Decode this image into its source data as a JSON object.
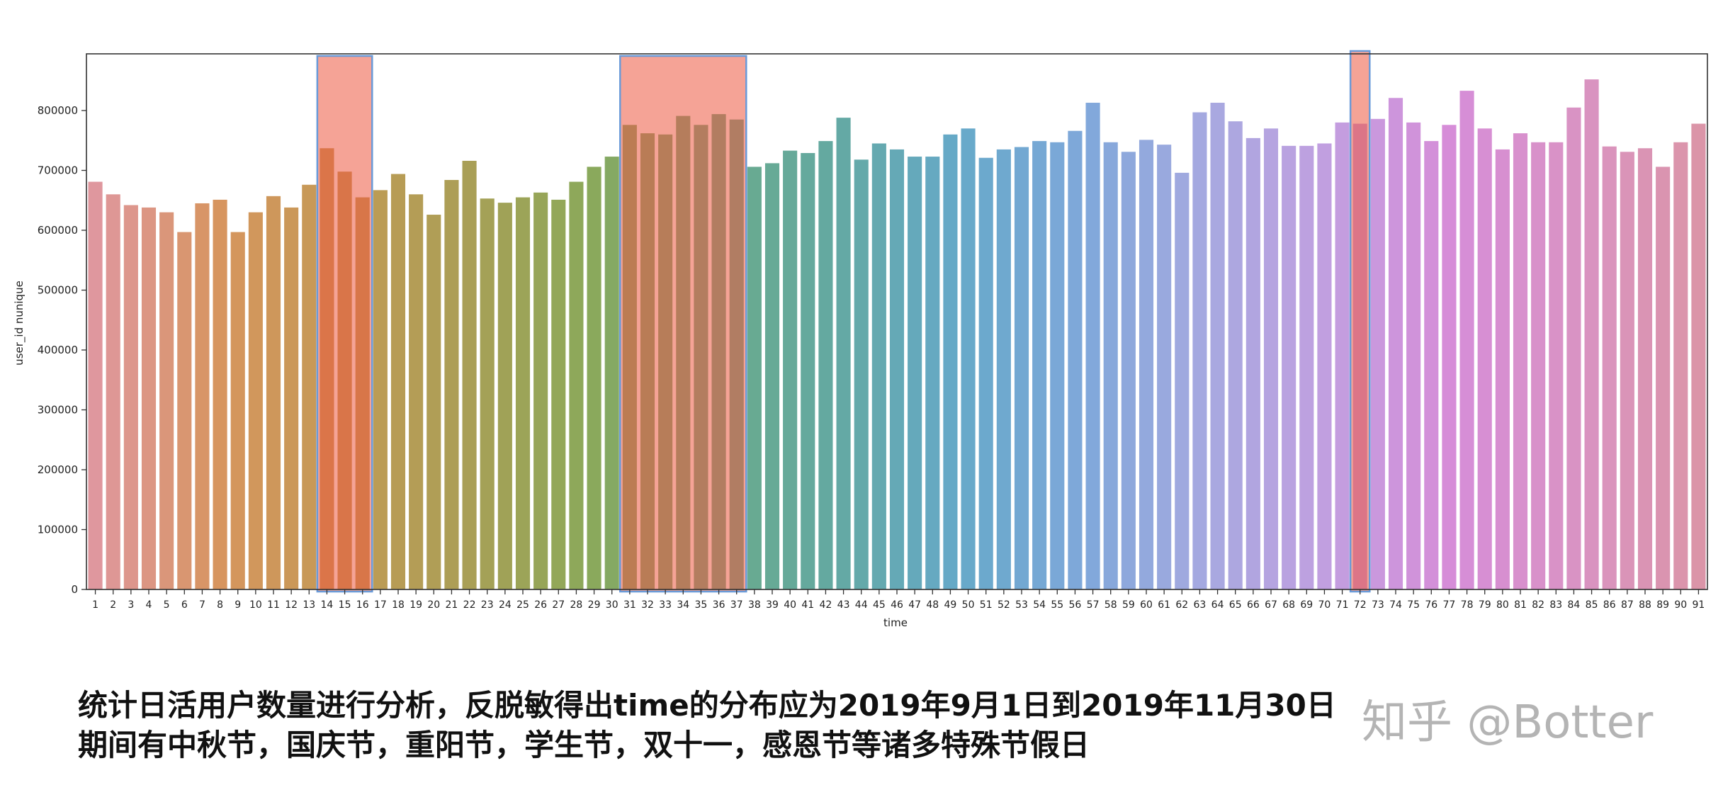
{
  "chart_data": {
    "type": "bar",
    "title": "",
    "xlabel": "time",
    "ylabel": "user_id nunique",
    "ylim": [
      0,
      890000
    ],
    "yticks": [
      0,
      100000,
      200000,
      300000,
      400000,
      500000,
      600000,
      700000,
      800000
    ],
    "ytick_labels": [
      "0",
      "100000",
      "200000",
      "300000",
      "400000",
      "500000",
      "600000",
      "700000",
      "800000"
    ],
    "grid": false,
    "legend": null,
    "categories": [
      "1",
      "2",
      "3",
      "4",
      "5",
      "6",
      "7",
      "8",
      "9",
      "10",
      "11",
      "12",
      "13",
      "14",
      "15",
      "16",
      "17",
      "18",
      "19",
      "20",
      "21",
      "22",
      "23",
      "24",
      "25",
      "26",
      "27",
      "28",
      "29",
      "30",
      "31",
      "32",
      "33",
      "34",
      "35",
      "36",
      "37",
      "38",
      "39",
      "40",
      "41",
      "42",
      "43",
      "44",
      "45",
      "46",
      "47",
      "48",
      "49",
      "50",
      "51",
      "52",
      "53",
      "54",
      "55",
      "56",
      "57",
      "58",
      "59",
      "60",
      "61",
      "62",
      "63",
      "64",
      "65",
      "66",
      "67",
      "68",
      "69",
      "70",
      "71",
      "72",
      "73",
      "74",
      "75",
      "76",
      "77",
      "78",
      "79",
      "80",
      "81",
      "82",
      "83",
      "84",
      "85",
      "86",
      "87",
      "88",
      "89",
      "90",
      "91"
    ],
    "values": [
      681000,
      660000,
      642000,
      638000,
      630000,
      597000,
      645000,
      651000,
      597000,
      630000,
      657000,
      638000,
      676000,
      737000,
      698000,
      655000,
      667000,
      694000,
      660000,
      626000,
      684000,
      716000,
      653000,
      646000,
      655000,
      663000,
      651000,
      681000,
      706000,
      723000,
      776000,
      762000,
      760000,
      791000,
      776000,
      794000,
      785000,
      706000,
      712000,
      733000,
      729000,
      749000,
      788000,
      718000,
      745000,
      735000,
      723000,
      723000,
      760000,
      770000,
      721000,
      735000,
      739000,
      749000,
      747000,
      766000,
      813000,
      747000,
      731000,
      751000,
      743000,
      696000,
      797000,
      813000,
      782000,
      754000,
      770000,
      741000,
      741000,
      745000,
      780000,
      778000,
      786000,
      821000,
      780000,
      749000,
      776000,
      833000,
      770000,
      735000,
      762000,
      747000,
      747000,
      805000,
      852000,
      740000,
      731000,
      737000,
      706000,
      747000,
      778000
    ],
    "highlights": [
      {
        "from": "14",
        "to": "16",
        "color": "#f4a196",
        "border": "#6a9ad8"
      },
      {
        "from": "31",
        "to": "37",
        "color": "#f4a196",
        "border": "#6a9ad8"
      },
      {
        "from": "72",
        "to": "72",
        "color": "#f4a196",
        "border": "#6a9ad8"
      }
    ],
    "palette_stops": [
      "#df979e",
      "#d7955f",
      "#c29a55",
      "#aa9f56",
      "#8ba95a",
      "#6aaa8a",
      "#64a9a2",
      "#66a9c9",
      "#7fa8da",
      "#a6a9e0",
      "#c29fe0",
      "#d68dd8",
      "#d993c4",
      "#db95a8"
    ]
  },
  "caption": {
    "line1": "统计日活用户数量进行分析，反脱敏得出time的分布应为2019年9月1日到2019年11月30日",
    "line2": "期间有中秋节，国庆节，重阳节，学生节，双十一，感恩节等诸多特殊节假日"
  },
  "watermark": "知乎 @Botter"
}
